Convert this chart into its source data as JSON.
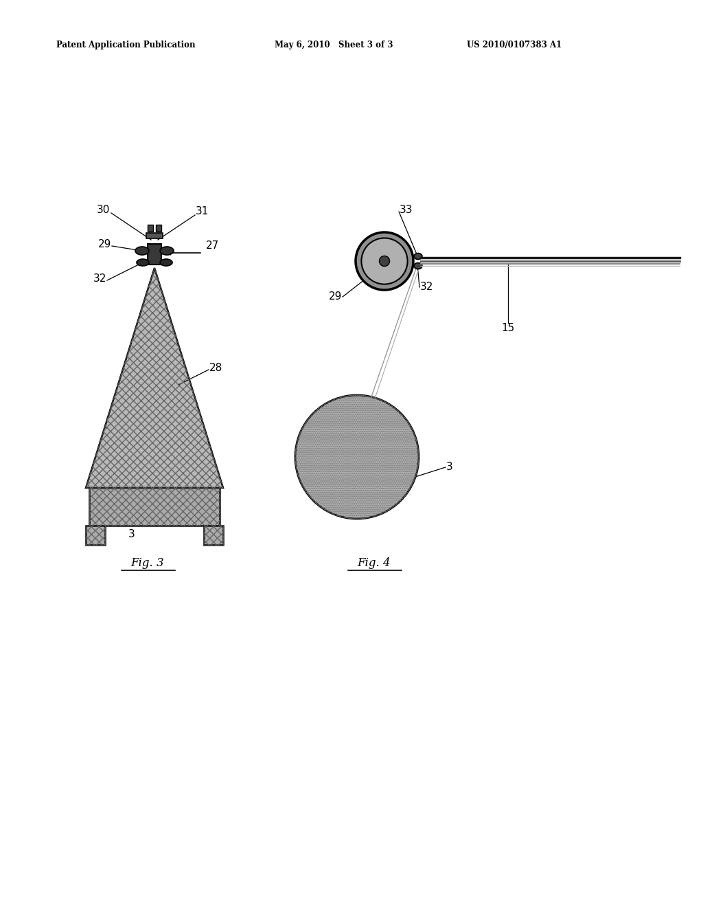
{
  "header_left": "Patent Application Publication",
  "header_center": "May 6, 2010   Sheet 3 of 3",
  "header_right": "US 2010/0107383 A1",
  "fig3_label": "Fig. 3",
  "fig4_label": "Fig. 4",
  "bg_color": "#ffffff",
  "text_color": "#000000",
  "tri_gray": "#b8b8b8",
  "base_gray": "#aaaaaa",
  "guide_dark": "#383838",
  "clamp_dark": "#2a2a2a",
  "roll_gray": "#909090",
  "bobbin_gray": "#b0b0b0"
}
